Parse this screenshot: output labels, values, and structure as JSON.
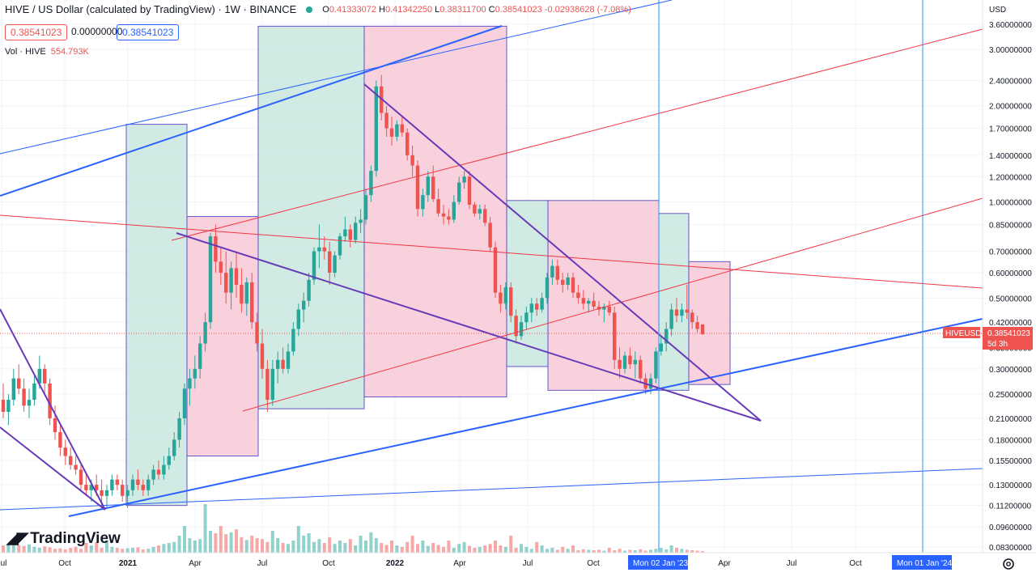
{
  "header": {
    "symbol_title": "HIVE / US Dollar (calculated by TradingView) · 1W · BINANCE",
    "open_label": "O",
    "open": "0.41333072",
    "high_label": "H",
    "high": "0.41342250",
    "low_label": "L",
    "low": "0.38311700",
    "close_label": "C",
    "close": "0.38541023",
    "change": "-0.02938628 (-7.08%)"
  },
  "price_boxes": {
    "bid": "0.38541023",
    "spread": "0.00000000",
    "ask": "0.38541023"
  },
  "volume": {
    "label": "Vol · HIVE",
    "value": "554.793K"
  },
  "branding": {
    "logo_text": "TradingView"
  },
  "colors": {
    "up": "#26a69a",
    "down": "#ef5350",
    "trend_blue": "#2962ff",
    "trend_purple": "#673ab7",
    "trend_red": "#f23645",
    "bull_box": "#cfe9e3",
    "bear_box": "#f8cfdc",
    "cursor_line": "#2196f3"
  },
  "chart_data": {
    "type": "candlestick",
    "price_scale": {
      "currency": "USD",
      "log": true,
      "ticks": [
        "3.60000000",
        "3.00000000",
        "2.40000000",
        "2.00000000",
        "1.70000000",
        "1.40000000",
        "1.20000000",
        "1.00000000",
        "0.85000000",
        "0.70000000",
        "0.60000000",
        "0.50000000",
        "0.42000000",
        "0.35000000",
        "0.30000000",
        "0.25000000",
        "0.21000000",
        "0.18000000",
        "0.15500000",
        "0.13000000",
        "0.11200000",
        "0.09600000",
        "0.08300000"
      ]
    },
    "time_axis": {
      "ticks": [
        "Jul",
        "Oct",
        "2021",
        "Apr",
        "Jul",
        "Oct",
        "2022",
        "Apr",
        "Jul",
        "Oct",
        "Apr",
        "Jul",
        "Oct"
      ],
      "highlighted": [
        "Mon 02 Jan '23",
        "Mon 01 Jan '24"
      ]
    },
    "last_price": {
      "symbol": "HIVEUSD",
      "value": "0.38541023",
      "countdown": "5d 3h"
    },
    "candles": [
      [
        0.24,
        0.27,
        0.21,
        0.22
      ],
      [
        0.22,
        0.25,
        0.2,
        0.24
      ],
      [
        0.24,
        0.3,
        0.23,
        0.28
      ],
      [
        0.28,
        0.31,
        0.25,
        0.26
      ],
      [
        0.26,
        0.28,
        0.22,
        0.23
      ],
      [
        0.23,
        0.26,
        0.21,
        0.24
      ],
      [
        0.24,
        0.29,
        0.23,
        0.27
      ],
      [
        0.27,
        0.33,
        0.26,
        0.3
      ],
      [
        0.3,
        0.31,
        0.25,
        0.27
      ],
      [
        0.27,
        0.28,
        0.2,
        0.21
      ],
      [
        0.21,
        0.23,
        0.18,
        0.19
      ],
      [
        0.19,
        0.2,
        0.16,
        0.17
      ],
      [
        0.17,
        0.18,
        0.15,
        0.16
      ],
      [
        0.16,
        0.17,
        0.145,
        0.15
      ],
      [
        0.15,
        0.16,
        0.14,
        0.145
      ],
      [
        0.145,
        0.15,
        0.125,
        0.13
      ],
      [
        0.13,
        0.14,
        0.12,
        0.125
      ],
      [
        0.125,
        0.135,
        0.115,
        0.13
      ],
      [
        0.13,
        0.14,
        0.12,
        0.125
      ],
      [
        0.125,
        0.135,
        0.11,
        0.12
      ],
      [
        0.12,
        0.13,
        0.11,
        0.125
      ],
      [
        0.125,
        0.14,
        0.12,
        0.135
      ],
      [
        0.135,
        0.14,
        0.125,
        0.13
      ],
      [
        0.13,
        0.135,
        0.115,
        0.12
      ],
      [
        0.12,
        0.13,
        0.11,
        0.125
      ],
      [
        0.125,
        0.14,
        0.12,
        0.135
      ],
      [
        0.135,
        0.145,
        0.125,
        0.13
      ],
      [
        0.13,
        0.135,
        0.12,
        0.125
      ],
      [
        0.125,
        0.14,
        0.12,
        0.135
      ],
      [
        0.135,
        0.15,
        0.13,
        0.145
      ],
      [
        0.145,
        0.155,
        0.135,
        0.14
      ],
      [
        0.14,
        0.16,
        0.135,
        0.15
      ],
      [
        0.15,
        0.17,
        0.145,
        0.16
      ],
      [
        0.16,
        0.19,
        0.155,
        0.18
      ],
      [
        0.18,
        0.22,
        0.17,
        0.21
      ],
      [
        0.21,
        0.27,
        0.2,
        0.26
      ],
      [
        0.26,
        0.3,
        0.23,
        0.28
      ],
      [
        0.28,
        0.33,
        0.26,
        0.3
      ],
      [
        0.3,
        0.38,
        0.28,
        0.36
      ],
      [
        0.36,
        0.45,
        0.34,
        0.42
      ],
      [
        0.42,
        0.8,
        0.4,
        0.78
      ],
      [
        0.78,
        0.85,
        0.6,
        0.65
      ],
      [
        0.65,
        0.72,
        0.55,
        0.6
      ],
      [
        0.6,
        0.7,
        0.48,
        0.52
      ],
      [
        0.52,
        0.65,
        0.46,
        0.62
      ],
      [
        0.62,
        0.7,
        0.5,
        0.55
      ],
      [
        0.55,
        0.62,
        0.45,
        0.48
      ],
      [
        0.48,
        0.58,
        0.44,
        0.56
      ],
      [
        0.56,
        0.6,
        0.4,
        0.42
      ],
      [
        0.42,
        0.45,
        0.34,
        0.36
      ],
      [
        0.36,
        0.4,
        0.28,
        0.3
      ],
      [
        0.3,
        0.32,
        0.22,
        0.24
      ],
      [
        0.24,
        0.32,
        0.23,
        0.3
      ],
      [
        0.3,
        0.34,
        0.27,
        0.32
      ],
      [
        0.32,
        0.35,
        0.29,
        0.3
      ],
      [
        0.3,
        0.36,
        0.29,
        0.34
      ],
      [
        0.34,
        0.42,
        0.33,
        0.4
      ],
      [
        0.4,
        0.48,
        0.38,
        0.46
      ],
      [
        0.46,
        0.52,
        0.42,
        0.49
      ],
      [
        0.49,
        0.6,
        0.47,
        0.57
      ],
      [
        0.57,
        0.72,
        0.55,
        0.7
      ],
      [
        0.7,
        0.85,
        0.62,
        0.72
      ],
      [
        0.72,
        0.78,
        0.66,
        0.7
      ],
      [
        0.7,
        0.75,
        0.55,
        0.6
      ],
      [
        0.6,
        0.7,
        0.58,
        0.68
      ],
      [
        0.68,
        0.8,
        0.66,
        0.78
      ],
      [
        0.78,
        0.9,
        0.75,
        0.82
      ],
      [
        0.82,
        0.85,
        0.72,
        0.76
      ],
      [
        0.76,
        0.9,
        0.74,
        0.86
      ],
      [
        0.86,
        0.95,
        0.8,
        0.88
      ],
      [
        0.88,
        1.1,
        0.85,
        1.05
      ],
      [
        1.05,
        1.3,
        1.0,
        1.25
      ],
      [
        1.25,
        2.4,
        1.2,
        2.3
      ],
      [
        2.3,
        2.5,
        1.8,
        1.9
      ],
      [
        1.9,
        2.0,
        1.6,
        1.7
      ],
      [
        1.7,
        1.85,
        1.5,
        1.6
      ],
      [
        1.6,
        1.8,
        1.55,
        1.75
      ],
      [
        1.75,
        1.85,
        1.6,
        1.65
      ],
      [
        1.65,
        1.7,
        1.35,
        1.4
      ],
      [
        1.4,
        1.5,
        1.2,
        1.3
      ],
      [
        1.3,
        1.35,
        0.9,
        0.95
      ],
      [
        0.95,
        1.1,
        0.9,
        1.05
      ],
      [
        1.05,
        1.25,
        1.0,
        1.2
      ],
      [
        1.2,
        1.3,
        1.0,
        1.02
      ],
      [
        1.02,
        1.1,
        0.9,
        0.92
      ],
      [
        0.92,
        0.98,
        0.85,
        0.9
      ],
      [
        0.9,
        0.95,
        0.85,
        0.88
      ],
      [
        0.88,
        1.05,
        0.86,
        1.0
      ],
      [
        1.0,
        1.2,
        0.98,
        1.15
      ],
      [
        1.15,
        1.25,
        1.1,
        1.2
      ],
      [
        1.2,
        1.25,
        0.95,
        0.98
      ],
      [
        0.98,
        1.0,
        0.9,
        0.92
      ],
      [
        0.92,
        0.98,
        0.88,
        0.95
      ],
      [
        0.95,
        0.98,
        0.84,
        0.86
      ],
      [
        0.86,
        0.9,
        0.7,
        0.72
      ],
      [
        0.72,
        0.75,
        0.5,
        0.52
      ],
      [
        0.52,
        0.55,
        0.45,
        0.48
      ],
      [
        0.48,
        0.56,
        0.46,
        0.54
      ],
      [
        0.54,
        0.56,
        0.42,
        0.44
      ],
      [
        0.44,
        0.46,
        0.36,
        0.38
      ],
      [
        0.38,
        0.44,
        0.37,
        0.42
      ],
      [
        0.42,
        0.47,
        0.4,
        0.45
      ],
      [
        0.45,
        0.5,
        0.42,
        0.48
      ],
      [
        0.48,
        0.5,
        0.44,
        0.46
      ],
      [
        0.46,
        0.52,
        0.45,
        0.5
      ],
      [
        0.5,
        0.6,
        0.48,
        0.58
      ],
      [
        0.58,
        0.66,
        0.55,
        0.63
      ],
      [
        0.63,
        0.66,
        0.55,
        0.57
      ],
      [
        0.57,
        0.6,
        0.52,
        0.55
      ],
      [
        0.55,
        0.6,
        0.53,
        0.58
      ],
      [
        0.58,
        0.6,
        0.5,
        0.52
      ],
      [
        0.52,
        0.55,
        0.48,
        0.5
      ],
      [
        0.5,
        0.53,
        0.46,
        0.48
      ],
      [
        0.48,
        0.5,
        0.45,
        0.49
      ],
      [
        0.49,
        0.52,
        0.46,
        0.47
      ],
      [
        0.47,
        0.49,
        0.44,
        0.46
      ],
      [
        0.46,
        0.48,
        0.42,
        0.47
      ],
      [
        0.47,
        0.49,
        0.44,
        0.45
      ],
      [
        0.45,
        0.47,
        0.3,
        0.32
      ],
      [
        0.32,
        0.35,
        0.28,
        0.3
      ],
      [
        0.3,
        0.34,
        0.29,
        0.33
      ],
      [
        0.33,
        0.35,
        0.3,
        0.31
      ],
      [
        0.31,
        0.34,
        0.28,
        0.32
      ],
      [
        0.32,
        0.33,
        0.27,
        0.28
      ],
      [
        0.28,
        0.29,
        0.25,
        0.26
      ],
      [
        0.26,
        0.29,
        0.25,
        0.28
      ],
      [
        0.28,
        0.35,
        0.27,
        0.34
      ],
      [
        0.34,
        0.38,
        0.33,
        0.36
      ],
      [
        0.36,
        0.42,
        0.34,
        0.4
      ],
      [
        0.4,
        0.48,
        0.38,
        0.46
      ],
      [
        0.46,
        0.5,
        0.42,
        0.44
      ],
      [
        0.44,
        0.48,
        0.42,
        0.46
      ],
      [
        0.46,
        0.55,
        0.43,
        0.45
      ],
      [
        0.45,
        0.46,
        0.4,
        0.42
      ],
      [
        0.42,
        0.44,
        0.39,
        0.4
      ],
      [
        0.41333072,
        0.4134225,
        0.383117,
        0.38541023
      ]
    ],
    "volume_bars": [
      0.15,
      0.18,
      0.2,
      0.16,
      0.14,
      0.17,
      0.12,
      0.1,
      0.13,
      0.11,
      0.08,
      0.09,
      0.07,
      0.1,
      0.12,
      0.08,
      0.2,
      0.15,
      0.22,
      0.1,
      0.25,
      0.12,
      0.1,
      0.08,
      0.09,
      0.1,
      0.11,
      0.07,
      0.08,
      0.12,
      0.15,
      0.18,
      0.2,
      0.22,
      0.35,
      0.55,
      0.3,
      0.25,
      0.28,
      1.0,
      0.45,
      0.4,
      0.55,
      0.38,
      0.42,
      0.48,
      0.32,
      0.26,
      0.35,
      0.3,
      0.28,
      0.22,
      0.45,
      0.3,
      0.2,
      0.18,
      0.25,
      0.55,
      0.35,
      0.4,
      0.22,
      0.28,
      0.2,
      0.32,
      0.18,
      0.25,
      0.2,
      0.28,
      0.15,
      0.35,
      0.25,
      0.42,
      0.3,
      0.2,
      0.16,
      0.25,
      0.15,
      0.12,
      0.22,
      0.35,
      0.18,
      0.25,
      0.14,
      0.2,
      0.16,
      0.12,
      0.25,
      0.1,
      0.18,
      0.22,
      0.14,
      0.1,
      0.12,
      0.15,
      0.18,
      0.25,
      0.15,
      0.12,
      0.35,
      0.1,
      0.18,
      0.12,
      0.08,
      0.22,
      0.15,
      0.08,
      0.1,
      0.06,
      0.12,
      0.08,
      0.15,
      0.05,
      0.07,
      0.06,
      0.05,
      0.06,
      0.04,
      0.1,
      0.05,
      0.08,
      0.04,
      0.06,
      0.05,
      0.07,
      0.04,
      0.06,
      0.08,
      0.1,
      0.07,
      0.15,
      0.1,
      0.08,
      0.06,
      0.05,
      0.04,
      0.03
    ]
  }
}
